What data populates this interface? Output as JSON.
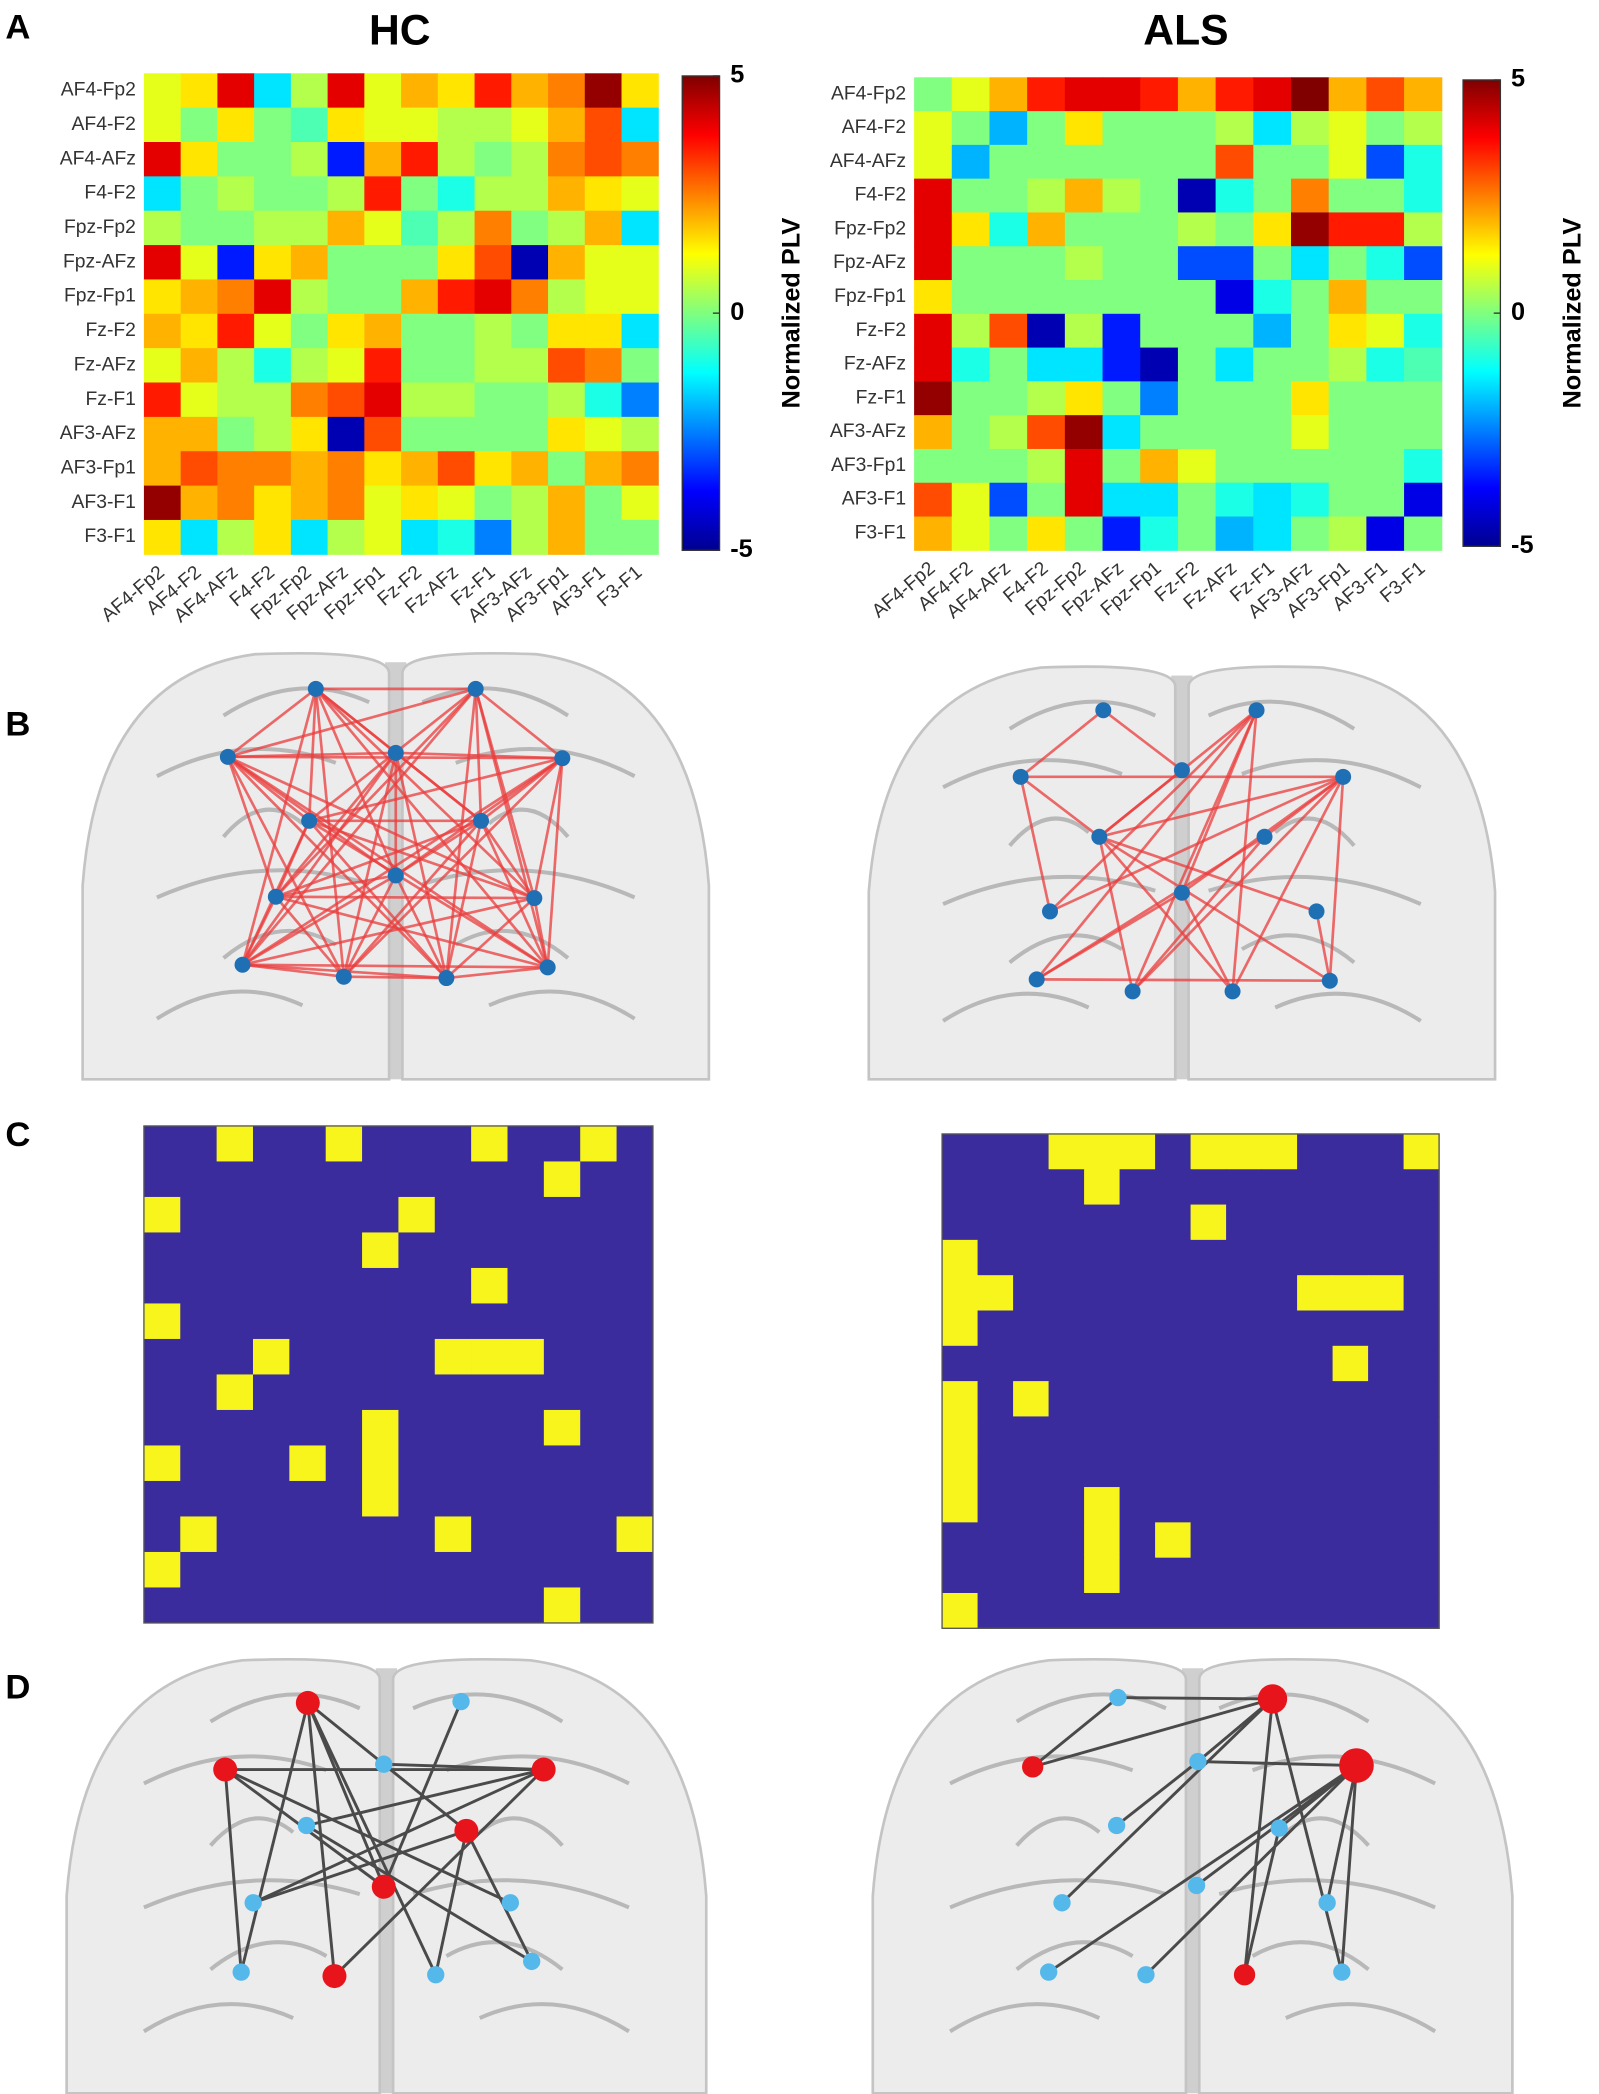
{
  "panel_labels": [
    "A",
    "B",
    "C",
    "D"
  ],
  "chart_data": [
    {
      "type": "heatmap",
      "title": "HC",
      "zlabel": "Normalized PLV",
      "colormap": "jet",
      "categories": [
        "AF4-Fp2",
        "AF4-F2",
        "AF4-AFz",
        "F4-F2",
        "Fpz-Fp2",
        "Fpz-AFz",
        "Fpz-Fp1",
        "Fz-F2",
        "Fz-AFz",
        "Fz-F1",
        "AF3-AFz",
        "AF3-Fp1",
        "AF3-F1",
        "F3-F1"
      ],
      "zlim": [
        -5,
        5
      ],
      "zticks": [
        -5,
        0,
        5
      ],
      "values": [
        [
          1,
          1.5,
          4,
          -1.5,
          0.5,
          4,
          1,
          2,
          1.5,
          3.5,
          2,
          2.5,
          4.8,
          1.5
        ],
        [
          1,
          0,
          1.5,
          0,
          -0.5,
          1.5,
          1,
          1,
          0.5,
          0.5,
          1,
          2,
          3,
          -1.5
        ],
        [
          4,
          1.5,
          0,
          0,
          0.5,
          -3.5,
          2,
          3.5,
          0.5,
          0,
          0.5,
          2.5,
          3,
          2.5
        ],
        [
          -1.5,
          0,
          0.5,
          0,
          0,
          0.5,
          3.5,
          0,
          -1,
          0.5,
          0.5,
          2,
          1.5,
          1
        ],
        [
          0.5,
          0,
          0,
          0.5,
          0.5,
          2,
          1,
          -0.5,
          0.5,
          2.5,
          0,
          0.5,
          2,
          -1.5
        ],
        [
          4,
          1,
          -3.5,
          1.5,
          2,
          0,
          0,
          0,
          1.5,
          3,
          -4.5,
          2,
          1,
          1
        ],
        [
          1.5,
          2,
          2.5,
          4,
          0.5,
          0,
          0,
          2,
          3.5,
          4,
          2.5,
          0.5,
          1,
          1
        ],
        [
          2,
          1.5,
          3.5,
          1,
          0,
          1.5,
          2,
          0,
          0,
          0.5,
          0,
          1.5,
          1.5,
          -1.5
        ],
        [
          1,
          2,
          0.5,
          -1,
          0.5,
          1,
          3.5,
          0,
          0,
          0.5,
          0.5,
          3,
          2.5,
          0
        ],
        [
          3.5,
          1,
          0.5,
          0.5,
          2.5,
          3,
          4,
          0.5,
          0.5,
          0,
          0,
          0.5,
          -1,
          -2.5
        ],
        [
          2,
          2,
          0,
          0.5,
          1.5,
          -4.5,
          3,
          0,
          0,
          0,
          0,
          1.5,
          1,
          0.5
        ],
        [
          2,
          3,
          2.5,
          2.5,
          2,
          2.5,
          1.5,
          2,
          3,
          1.5,
          2,
          0,
          2,
          2.5
        ],
        [
          4.8,
          2,
          2.5,
          1.5,
          2,
          2.5,
          1,
          1.5,
          1,
          0,
          0.5,
          2,
          0,
          1
        ],
        [
          1.5,
          -1.5,
          0.5,
          1.5,
          -1.5,
          0.5,
          1,
          -1.5,
          -1,
          -2.5,
          0.5,
          2,
          0,
          0
        ]
      ]
    },
    {
      "type": "heatmap",
      "title": "ALS",
      "zlabel": "Normalized PLV",
      "colormap": "jet",
      "categories": [
        "AF4-Fp2",
        "AF4-F2",
        "AF4-AFz",
        "F4-F2",
        "Fpz-Fp2",
        "Fpz-AFz",
        "Fpz-Fp1",
        "Fz-F2",
        "Fz-AFz",
        "Fz-F1",
        "AF3-AFz",
        "AF3-Fp1",
        "AF3-F1",
        "F3-F1"
      ],
      "zlim": [
        -5,
        5
      ],
      "zticks": [
        -5,
        0,
        5
      ],
      "values": [
        [
          0,
          1,
          2,
          3.5,
          4,
          4,
          3.5,
          2,
          3.5,
          4,
          5,
          2,
          3,
          2
        ],
        [
          1,
          0,
          -2,
          0,
          1.5,
          0,
          0,
          0,
          0.5,
          -1.5,
          0.5,
          1,
          0,
          0.5
        ],
        [
          1,
          -2,
          0,
          0,
          0,
          0,
          0,
          0,
          3,
          0,
          0,
          1,
          -3,
          -1
        ],
        [
          4,
          0,
          0,
          0.5,
          2,
          0.5,
          0,
          -4.5,
          -1,
          0,
          2.5,
          0,
          0,
          -1
        ],
        [
          4,
          1.5,
          -1,
          2,
          0,
          0,
          0,
          0.5,
          0,
          1.5,
          4.8,
          3.5,
          3.5,
          0.5
        ],
        [
          4,
          0,
          0,
          0,
          0.5,
          0,
          0,
          -3,
          -3,
          0,
          -1.5,
          0,
          -1,
          -3
        ],
        [
          1.5,
          0,
          0,
          0,
          0,
          0,
          0,
          0,
          -4,
          -1,
          0,
          2,
          0,
          0
        ],
        [
          4,
          0.5,
          3,
          -4.5,
          0.5,
          -3.5,
          0,
          0,
          0,
          -2,
          0,
          1.5,
          1,
          -1
        ],
        [
          4,
          -1,
          0,
          -1.5,
          -1.5,
          -3.5,
          -4.5,
          0,
          -1.5,
          0,
          0,
          0.5,
          -1,
          -0.5
        ],
        [
          4.8,
          0,
          0,
          0.5,
          1.5,
          0,
          -2.5,
          0,
          0,
          0,
          1.5,
          0,
          0,
          0
        ],
        [
          2,
          0,
          0.5,
          3,
          4.8,
          -1.5,
          0,
          0,
          0,
          0,
          1,
          0,
          0,
          0
        ],
        [
          0,
          0,
          0,
          0.5,
          4,
          0,
          2,
          1,
          0,
          0,
          0,
          0,
          0,
          -1
        ],
        [
          3,
          1,
          -3,
          0,
          4,
          -1.5,
          -1.5,
          0,
          -1,
          -1.5,
          -1,
          0,
          0,
          -4
        ],
        [
          2,
          1,
          0,
          1.5,
          0,
          -3.5,
          -1,
          0,
          -2,
          -1.5,
          0,
          0.5,
          -4,
          0
        ]
      ]
    },
    {
      "type": "binary",
      "colors": [
        "#3b2c9e",
        "#f7f51c"
      ],
      "values": [
        [
          0,
          0,
          1,
          0,
          0,
          1,
          0,
          0,
          0,
          1,
          0,
          0,
          1,
          0
        ],
        [
          0,
          0,
          0,
          0,
          0,
          0,
          0,
          0,
          0,
          0,
          0,
          1,
          0,
          0
        ],
        [
          1,
          0,
          0,
          0,
          0,
          0,
          0,
          1,
          0,
          0,
          0,
          0,
          0,
          0
        ],
        [
          0,
          0,
          0,
          0,
          0,
          0,
          1,
          0,
          0,
          0,
          0,
          0,
          0,
          0
        ],
        [
          0,
          0,
          0,
          0,
          0,
          0,
          0,
          0,
          0,
          1,
          0,
          0,
          0,
          0
        ],
        [
          1,
          0,
          0,
          0,
          0,
          0,
          0,
          0,
          0,
          0,
          0,
          0,
          0,
          0
        ],
        [
          0,
          0,
          0,
          1,
          0,
          0,
          0,
          0,
          1,
          1,
          1,
          0,
          0,
          0
        ],
        [
          0,
          0,
          1,
          0,
          0,
          0,
          0,
          0,
          0,
          0,
          0,
          0,
          0,
          0
        ],
        [
          0,
          0,
          0,
          0,
          0,
          0,
          1,
          0,
          0,
          0,
          0,
          1,
          0,
          0
        ],
        [
          1,
          0,
          0,
          0,
          1,
          0,
          1,
          0,
          0,
          0,
          0,
          0,
          0,
          0
        ],
        [
          0,
          0,
          0,
          0,
          0,
          0,
          1,
          0,
          0,
          0,
          0,
          0,
          0,
          0
        ],
        [
          0,
          1,
          0,
          0,
          0,
          0,
          0,
          0,
          1,
          0,
          0,
          0,
          0,
          1
        ],
        [
          1,
          0,
          0,
          0,
          0,
          0,
          0,
          0,
          0,
          0,
          0,
          0,
          0,
          0
        ],
        [
          0,
          0,
          0,
          0,
          0,
          0,
          0,
          0,
          0,
          0,
          0,
          1,
          0,
          0
        ]
      ]
    },
    {
      "type": "binary",
      "colors": [
        "#3b2c9e",
        "#f7f51c"
      ],
      "values": [
        [
          0,
          0,
          0,
          1,
          1,
          1,
          0,
          1,
          1,
          1,
          0,
          0,
          0,
          1
        ],
        [
          0,
          0,
          0,
          0,
          1,
          0,
          0,
          0,
          0,
          0,
          0,
          0,
          0,
          0
        ],
        [
          0,
          0,
          0,
          0,
          0,
          0,
          0,
          1,
          0,
          0,
          0,
          0,
          0,
          0
        ],
        [
          1,
          0,
          0,
          0,
          0,
          0,
          0,
          0,
          0,
          0,
          0,
          0,
          0,
          0
        ],
        [
          1,
          1,
          0,
          0,
          0,
          0,
          0,
          0,
          0,
          0,
          1,
          1,
          1,
          0
        ],
        [
          1,
          0,
          0,
          0,
          0,
          0,
          0,
          0,
          0,
          0,
          0,
          0,
          0,
          0
        ],
        [
          0,
          0,
          0,
          0,
          0,
          0,
          0,
          0,
          0,
          0,
          0,
          1,
          0,
          0
        ],
        [
          1,
          0,
          1,
          0,
          0,
          0,
          0,
          0,
          0,
          0,
          0,
          0,
          0,
          0
        ],
        [
          1,
          0,
          0,
          0,
          0,
          0,
          0,
          0,
          0,
          0,
          0,
          0,
          0,
          0
        ],
        [
          1,
          0,
          0,
          0,
          0,
          0,
          0,
          0,
          0,
          0,
          0,
          0,
          0,
          0
        ],
        [
          1,
          0,
          0,
          0,
          1,
          0,
          0,
          0,
          0,
          0,
          0,
          0,
          0,
          0
        ],
        [
          0,
          0,
          0,
          0,
          1,
          0,
          1,
          0,
          0,
          0,
          0,
          0,
          0,
          0
        ],
        [
          0,
          0,
          0,
          0,
          1,
          0,
          0,
          0,
          0,
          0,
          0,
          0,
          0,
          0
        ],
        [
          1,
          0,
          0,
          0,
          0,
          0,
          0,
          0,
          0,
          0,
          0,
          0,
          0,
          0
        ]
      ]
    }
  ]
}
